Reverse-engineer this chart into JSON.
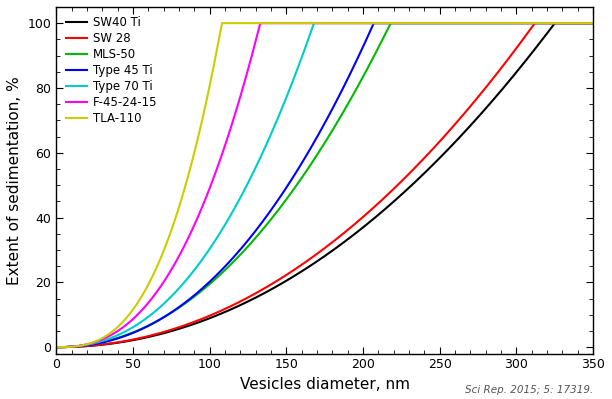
{
  "title": "",
  "xlabel": "Vesicles diameter, nm",
  "ylabel": "Extent of sedimentation, %",
  "citation": "Sci Rep. 2015; 5: 17319.",
  "xlim": [
    0,
    350
  ],
  "ylim": [
    -2,
    105
  ],
  "xticks": [
    0,
    50,
    100,
    150,
    200,
    250,
    300,
    350
  ],
  "yticks": [
    0,
    20,
    40,
    60,
    80,
    100
  ],
  "series": [
    {
      "label": "SW40 Ti",
      "color": "#000000",
      "cutoff": 325,
      "power": 2.05
    },
    {
      "label": "SW 28",
      "color": "#ff0000",
      "cutoff": 312,
      "power": 2.05
    },
    {
      "label": "MLS-50",
      "color": "#00bb00",
      "cutoff": 218,
      "power": 2.1
    },
    {
      "label": "Type 45 Ti",
      "color": "#0000ff",
      "cutoff": 207,
      "power": 2.2
    },
    {
      "label": "Type 70 Ti",
      "color": "#00cccc",
      "cutoff": 168,
      "power": 2.3
    },
    {
      "label": "F-45-24-15",
      "color": "#ff00ff",
      "cutoff": 133,
      "power": 2.5
    },
    {
      "label": "TLA-110",
      "color": "#cccc00",
      "cutoff": 108,
      "power": 2.8
    }
  ],
  "background_color": "#ffffff",
  "legend_fontsize": 8.5,
  "axis_label_fontsize": 11,
  "tick_fontsize": 9,
  "linewidth": 1.5
}
